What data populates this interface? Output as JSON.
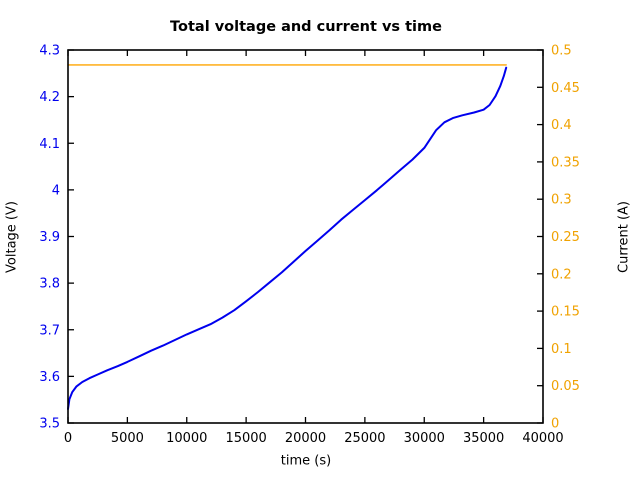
{
  "chart_data": {
    "type": "line",
    "title": "Total voltage and current vs time",
    "xlabel": "time (s)",
    "ylabel_left": "Voltage (V)",
    "ylabel_right": "Current (A)",
    "xlim": [
      0,
      40000
    ],
    "ylim_left": [
      3.5,
      4.3
    ],
    "ylim_right": [
      0,
      0.5
    ],
    "grid": false,
    "legend": "none",
    "tick_style": "inward-mirrored",
    "axis_color": "#000000",
    "left_tick_color": "#0000ee",
    "right_tick_color": "#f0a202",
    "x_tick_values": [
      0,
      5000,
      10000,
      15000,
      20000,
      25000,
      30000,
      35000,
      40000
    ],
    "x_tick_labels": [
      "0",
      "5000",
      "10000",
      "15000",
      "20000",
      "25000",
      "30000",
      "35000",
      "40000"
    ],
    "y_left_tick_values": [
      3.5,
      3.6,
      3.7,
      3.8,
      3.9,
      4.0,
      4.1,
      4.2,
      4.3
    ],
    "y_left_tick_labels": [
      "3.5",
      "3.6",
      "3.7",
      "3.8",
      "3.9",
      "4",
      "4.1",
      "4.2",
      "4.3"
    ],
    "y_right_tick_values": [
      0,
      0.05,
      0.1,
      0.15,
      0.2,
      0.25,
      0.3,
      0.35,
      0.4,
      0.45,
      0.5
    ],
    "y_right_tick_labels": [
      "0",
      "0.05",
      "0.1",
      "0.15",
      "0.2",
      "0.25",
      "0.3",
      "0.35",
      "0.4",
      "0.45",
      "0.5"
    ],
    "series": [
      {
        "name": "Total voltage",
        "axis": "left",
        "color": "#0000ee",
        "line_width": 2,
        "points": [
          [
            0,
            3.53
          ],
          [
            120,
            3.551
          ],
          [
            350,
            3.566
          ],
          [
            700,
            3.578
          ],
          [
            1200,
            3.588
          ],
          [
            1800,
            3.596
          ],
          [
            2500,
            3.604
          ],
          [
            3300,
            3.613
          ],
          [
            4200,
            3.622
          ],
          [
            5000,
            3.631
          ],
          [
            6000,
            3.643
          ],
          [
            7000,
            3.655
          ],
          [
            8000,
            3.666
          ],
          [
            9000,
            3.678
          ],
          [
            10000,
            3.69
          ],
          [
            11000,
            3.701
          ],
          [
            12000,
            3.712
          ],
          [
            13000,
            3.726
          ],
          [
            14000,
            3.742
          ],
          [
            15000,
            3.761
          ],
          [
            16000,
            3.781
          ],
          [
            17000,
            3.802
          ],
          [
            18000,
            3.823
          ],
          [
            19000,
            3.846
          ],
          [
            20000,
            3.869
          ],
          [
            21000,
            3.891
          ],
          [
            22000,
            3.913
          ],
          [
            23000,
            3.936
          ],
          [
            24000,
            3.957
          ],
          [
            25000,
            3.978
          ],
          [
            26000,
            3.999
          ],
          [
            27000,
            4.021
          ],
          [
            28000,
            4.043
          ],
          [
            29000,
            4.065
          ],
          [
            30000,
            4.09
          ],
          [
            31000,
            4.128
          ],
          [
            31700,
            4.145
          ],
          [
            32400,
            4.154
          ],
          [
            33200,
            4.16
          ],
          [
            34200,
            4.166
          ],
          [
            35000,
            4.172
          ],
          [
            35500,
            4.182
          ],
          [
            36000,
            4.201
          ],
          [
            36400,
            4.223
          ],
          [
            36700,
            4.244
          ],
          [
            36900,
            4.262
          ]
        ]
      },
      {
        "name": "Current",
        "axis": "right",
        "color": "#ffa500",
        "line_width": 1.4,
        "points": [
          [
            0,
            0.48
          ],
          [
            36900,
            0.48
          ]
        ]
      }
    ]
  }
}
